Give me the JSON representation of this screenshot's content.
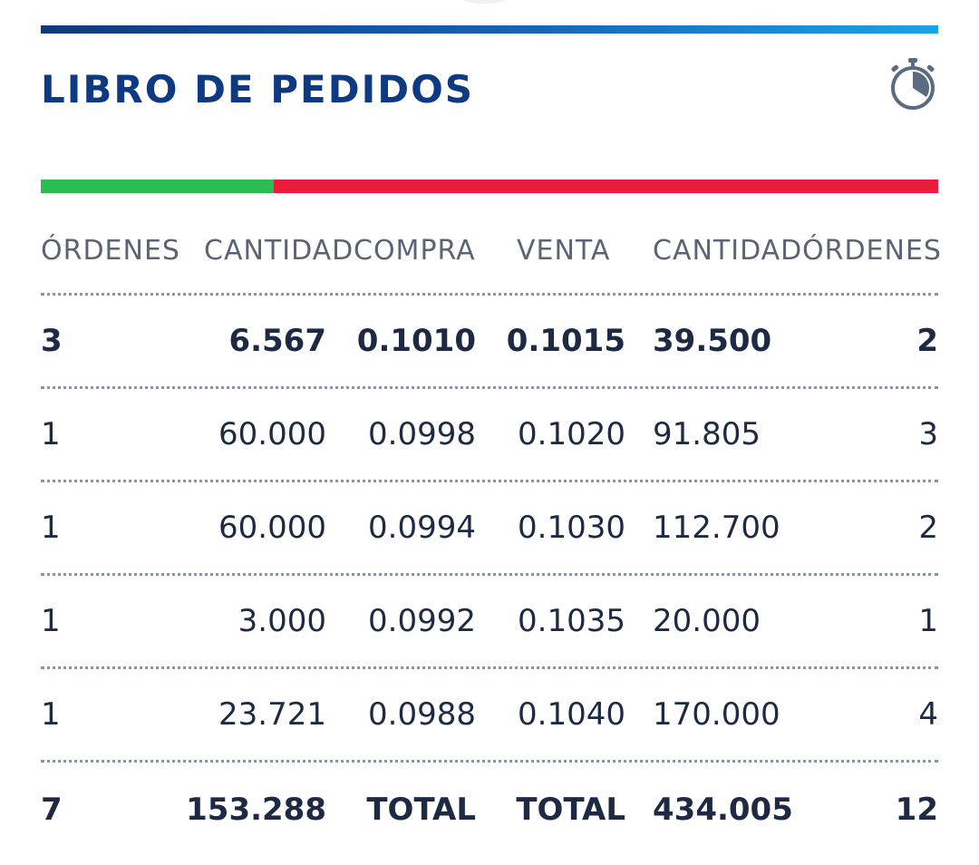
{
  "orderbook": {
    "title": "LIBRO DE PEDIDOS",
    "timer_icon": "stopwatch-icon",
    "depth_ratio": {
      "buy_fraction": 0.26,
      "buy_color": "#2bbd54",
      "sell_color": "#ea1c3c"
    },
    "colors": {
      "header_accent": "#0d3a82",
      "gradient_end": "#1ba3e6",
      "text": "#1e2a44",
      "header_text": "#5b6475"
    },
    "columns": {
      "bid_orders": "ÓRDENES",
      "bid_quantity": "CANTIDAD",
      "bid_price": "COMPRA",
      "ask_price": "VENTA",
      "ask_quantity": "CANTIDAD",
      "ask_orders": "ÓRDENES"
    },
    "rows": [
      {
        "bid_orders": "3",
        "bid_quantity": "6.567",
        "bid_price": "0.1010",
        "ask_price": "0.1015",
        "ask_quantity": "39.500",
        "ask_orders": "2"
      },
      {
        "bid_orders": "1",
        "bid_quantity": "60.000",
        "bid_price": "0.0998",
        "ask_price": "0.1020",
        "ask_quantity": "91.805",
        "ask_orders": "3"
      },
      {
        "bid_orders": "1",
        "bid_quantity": "60.000",
        "bid_price": "0.0994",
        "ask_price": "0.1030",
        "ask_quantity": "112.700",
        "ask_orders": "2"
      },
      {
        "bid_orders": "1",
        "bid_quantity": "3.000",
        "bid_price": "0.0992",
        "ask_price": "0.1035",
        "ask_quantity": "20.000",
        "ask_orders": "1"
      },
      {
        "bid_orders": "1",
        "bid_quantity": "23.721",
        "bid_price": "0.0988",
        "ask_price": "0.1040",
        "ask_quantity": "170.000",
        "ask_orders": "4"
      }
    ],
    "totals": {
      "bid_orders": "7",
      "bid_quantity": "153.288",
      "bid_label": "TOTAL",
      "ask_label": "TOTAL",
      "ask_quantity": "434.005",
      "ask_orders": "12"
    }
  }
}
